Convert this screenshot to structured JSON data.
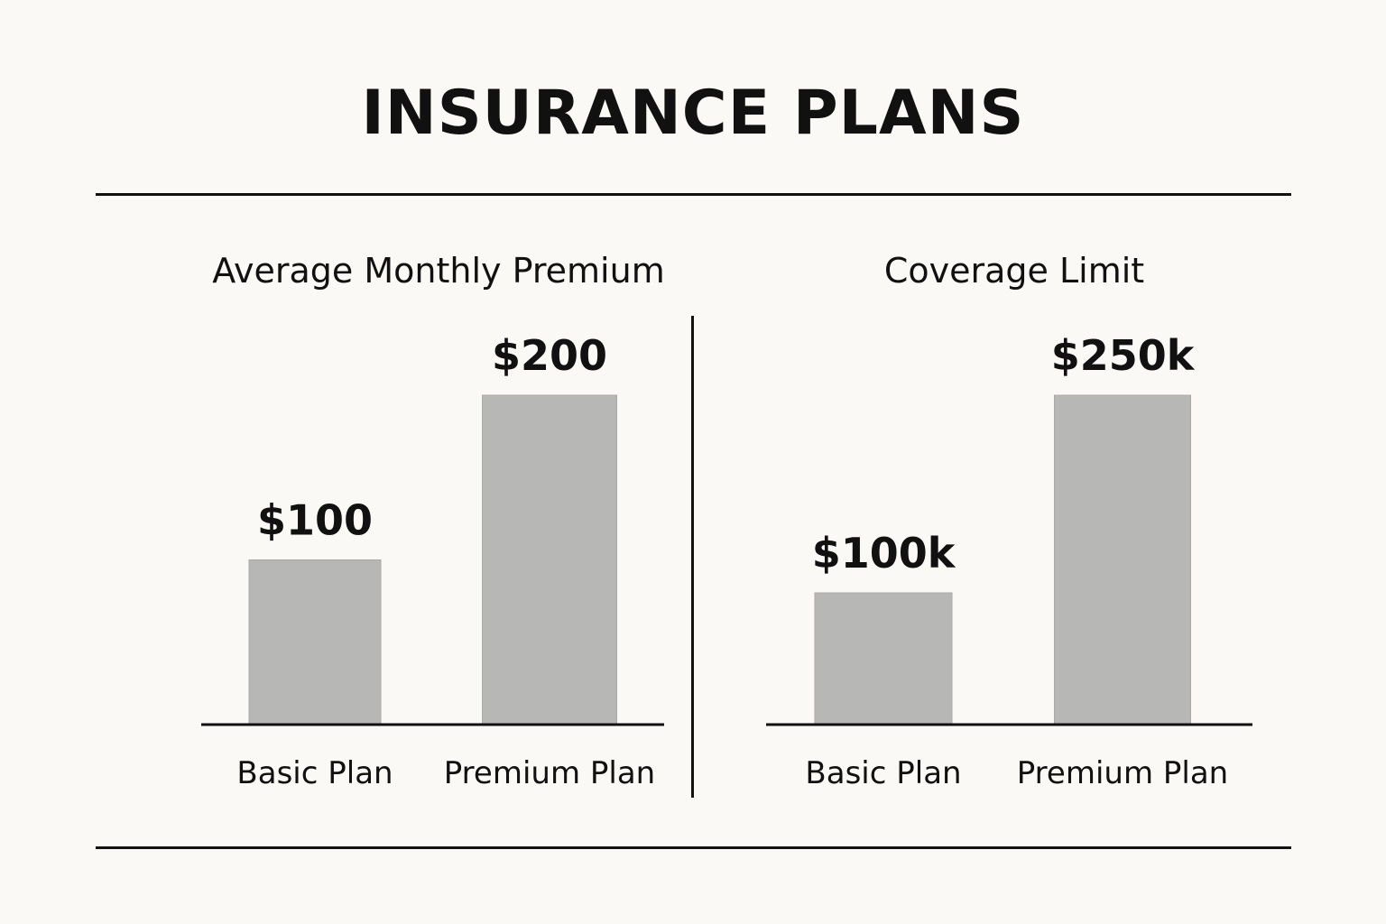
{
  "title": "INSURANCE PLANS",
  "chart_data": [
    {
      "type": "bar",
      "title": "Average Monthly Premium",
      "categories": [
        "Basic Plan",
        "Premium Plan"
      ],
      "values": [
        100,
        200
      ],
      "value_labels": [
        "$100",
        "$200"
      ],
      "ylim": [
        0,
        200
      ],
      "xlabel": "",
      "ylabel": "",
      "grid": false,
      "bar_color": "#b7b7b5"
    },
    {
      "type": "bar",
      "title": "Coverage Limit",
      "categories": [
        "Basic Plan",
        "Premium Plan"
      ],
      "values": [
        100000,
        250000
      ],
      "value_labels": [
        "$100k",
        "$250k"
      ],
      "ylim": [
        0,
        250000
      ],
      "xlabel": "",
      "ylabel": "",
      "grid": false,
      "bar_color": "#b7b7b5"
    }
  ]
}
